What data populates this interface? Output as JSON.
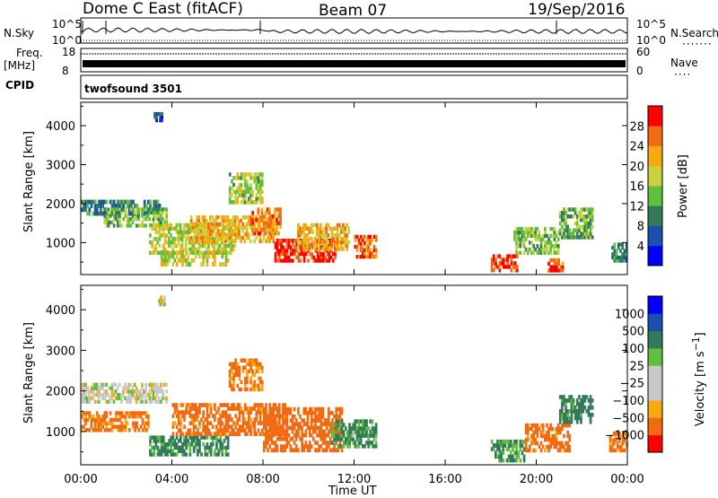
{
  "header": {
    "radar": "Dome C East (fitACF)",
    "beam": "Beam 07",
    "date": "19/Sep/2016"
  },
  "panels": {
    "nsky": {
      "label": "N.Sky",
      "ticks": [
        "10^5",
        "10^0"
      ]
    },
    "nsearch": {
      "label": "N.Search",
      "ticks": [
        "10^5",
        "10^0"
      ]
    },
    "freq": {
      "label_top": "Freq.",
      "label_unit": "[MHz]",
      "ticks": [
        "18",
        "8"
      ]
    },
    "nave": {
      "label": "Nave",
      "ticks": [
        "60",
        "0"
      ]
    },
    "cpid": {
      "label": "CPID",
      "value": "twofsound 3501"
    }
  },
  "colors": {
    "power_scale": [
      "#0000ff",
      "#1c4fb0",
      "#327a5a",
      "#5fbf3f",
      "#c8d23c",
      "#f7a90e",
      "#f26b12",
      "#ff0000"
    ],
    "velocity_scale": [
      "#ff0000",
      "#f26b12",
      "#f7a90e",
      "#c8c8c8",
      "#c8c8c8",
      "#5fbf3f",
      "#327a5a",
      "#1c4fb0",
      "#0000ff"
    ]
  },
  "chart_data": [
    {
      "type": "heatmap",
      "name": "power",
      "xlabel": "Time UT",
      "ylabel": "Slant Range [km]",
      "x_ticks": [
        "00:00",
        "04:00",
        "08:00",
        "12:00",
        "16:00",
        "20:00",
        "00:00"
      ],
      "x_range": [
        "00:00",
        "24:00"
      ],
      "y_ticks": [
        1000,
        2000,
        3000,
        4000
      ],
      "ylim": [
        180,
        4600
      ],
      "colorbar": {
        "label": "Power [dB]",
        "ticks": [
          4,
          8,
          12,
          16,
          20,
          24,
          28
        ],
        "range": [
          0,
          32
        ]
      },
      "regions": [
        {
          "t0": 0.0,
          "t1": 3.5,
          "r0": 1700,
          "r1": 2100,
          "value": 9
        },
        {
          "t0": 1.0,
          "t1": 3.8,
          "r0": 1400,
          "r1": 1900,
          "value": 14
        },
        {
          "t0": 3.0,
          "t1": 6.8,
          "r0": 700,
          "r1": 1500,
          "value": 17
        },
        {
          "t0": 3.5,
          "t1": 6.5,
          "r0": 400,
          "r1": 800,
          "value": 18
        },
        {
          "t0": 4.8,
          "t1": 8.5,
          "r0": 1000,
          "r1": 1700,
          "value": 21
        },
        {
          "t0": 7.5,
          "t1": 8.8,
          "r0": 1200,
          "r1": 1900,
          "value": 25
        },
        {
          "t0": 8.5,
          "t1": 11.2,
          "r0": 500,
          "r1": 1100,
          "value": 29
        },
        {
          "t0": 9.5,
          "t1": 11.8,
          "r0": 800,
          "r1": 1500,
          "value": 22
        },
        {
          "t0": 12.0,
          "t1": 13.0,
          "r0": 600,
          "r1": 1200,
          "value": 26
        },
        {
          "t0": 6.5,
          "t1": 8.0,
          "r0": 2000,
          "r1": 2800,
          "value": 16
        },
        {
          "t0": 3.2,
          "t1": 3.6,
          "r0": 4100,
          "r1": 4350,
          "value": 7
        },
        {
          "t0": 18.0,
          "t1": 19.2,
          "r0": 250,
          "r1": 700,
          "value": 28
        },
        {
          "t0": 19.0,
          "t1": 21.0,
          "r0": 700,
          "r1": 1400,
          "value": 15
        },
        {
          "t0": 20.5,
          "t1": 21.2,
          "r0": 250,
          "r1": 600,
          "value": 27
        },
        {
          "t0": 21.0,
          "t1": 22.5,
          "r0": 1100,
          "r1": 1900,
          "value": 14
        },
        {
          "t0": 23.3,
          "t1": 24.0,
          "r0": 500,
          "r1": 1000,
          "value": 10
        }
      ]
    },
    {
      "type": "heatmap",
      "name": "velocity",
      "xlabel": "Time UT",
      "ylabel": "Slant Range [km]",
      "x_ticks": [
        "00:00",
        "04:00",
        "08:00",
        "12:00",
        "16:00",
        "20:00",
        "00:00"
      ],
      "x_range": [
        "00:00",
        "24:00"
      ],
      "y_ticks": [
        1000,
        2000,
        3000,
        4000
      ],
      "ylim": [
        180,
        4600
      ],
      "colorbar": {
        "label": "Velocity [m s^-1]",
        "ticks": [
          "1000",
          "500",
          "100",
          "25",
          "−25",
          "−100",
          "−500",
          "−1000"
        ]
      },
      "regions": [
        {
          "t0": 0.0,
          "t1": 3.8,
          "r0": 1700,
          "r1": 2200,
          "value": 0
        },
        {
          "t0": 0.0,
          "t1": 3.0,
          "r0": 1000,
          "r1": 1500,
          "value": -150
        },
        {
          "t0": 3.0,
          "t1": 6.5,
          "r0": 400,
          "r1": 900,
          "value": 150
        },
        {
          "t0": 4.0,
          "t1": 9.0,
          "r0": 900,
          "r1": 1700,
          "value": -200
        },
        {
          "t0": 8.0,
          "t1": 11.5,
          "r0": 500,
          "r1": 1600,
          "value": -300
        },
        {
          "t0": 11.0,
          "t1": 13.0,
          "r0": 600,
          "r1": 1300,
          "value": 120
        },
        {
          "t0": 3.4,
          "t1": 3.7,
          "r0": 4100,
          "r1": 4350,
          "value": 0
        },
        {
          "t0": 6.5,
          "t1": 8.0,
          "r0": 2000,
          "r1": 2800,
          "value": -150
        },
        {
          "t0": 18.0,
          "t1": 19.5,
          "r0": 250,
          "r1": 800,
          "value": 150
        },
        {
          "t0": 19.5,
          "t1": 21.5,
          "r0": 500,
          "r1": 1200,
          "value": -200
        },
        {
          "t0": 21.0,
          "t1": 22.5,
          "r0": 1200,
          "r1": 1900,
          "value": 200
        },
        {
          "t0": 23.2,
          "t1": 24.0,
          "r0": 500,
          "r1": 1000,
          "value": -150
        }
      ]
    }
  ]
}
